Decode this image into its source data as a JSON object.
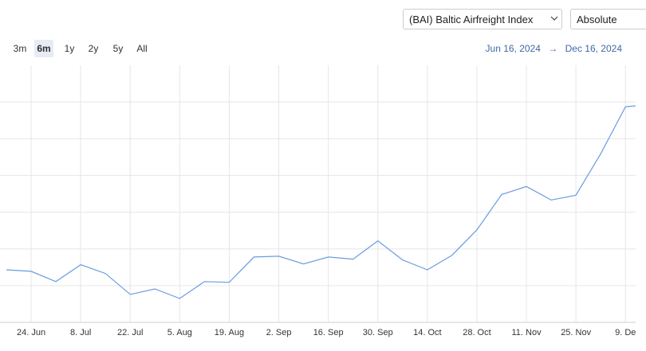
{
  "controls": {
    "index_select": "(BAI) Baltic Airfreight Index",
    "mode_select": "Absolute",
    "ranges": [
      "3m",
      "6m",
      "1y",
      "2y",
      "5y",
      "All"
    ],
    "selected_range": "6m",
    "date_from": "Jun 16, 2024",
    "date_arrow": "→",
    "date_to": "Dec 16, 2024"
  },
  "chart_data": {
    "type": "line",
    "categories": [
      null,
      "24. Jun",
      null,
      "8. Jul",
      null,
      "22. Jul",
      null,
      "5. Aug",
      null,
      "19. Aug",
      null,
      "2. Sep",
      null,
      "16. Sep",
      null,
      "30. Sep",
      null,
      "14. Oct",
      null,
      "28. Oct",
      null,
      "11. Nov",
      null,
      "25. Nov",
      null,
      "9. De",
      null
    ],
    "values": [
      1.43,
      1.39,
      1.11,
      1.57,
      1.33,
      0.76,
      0.91,
      0.65,
      1.11,
      1.09,
      1.78,
      1.8,
      1.59,
      1.78,
      1.72,
      2.22,
      1.7,
      1.43,
      1.83,
      2.52,
      3.48,
      3.7,
      3.33,
      3.46,
      4.59,
      5.87,
      5.93
    ],
    "color": "#6a9be3",
    "ylim": [
      0,
      7
    ],
    "yticks": [
      1,
      2,
      3,
      4,
      5,
      6
    ],
    "grid": true
  }
}
